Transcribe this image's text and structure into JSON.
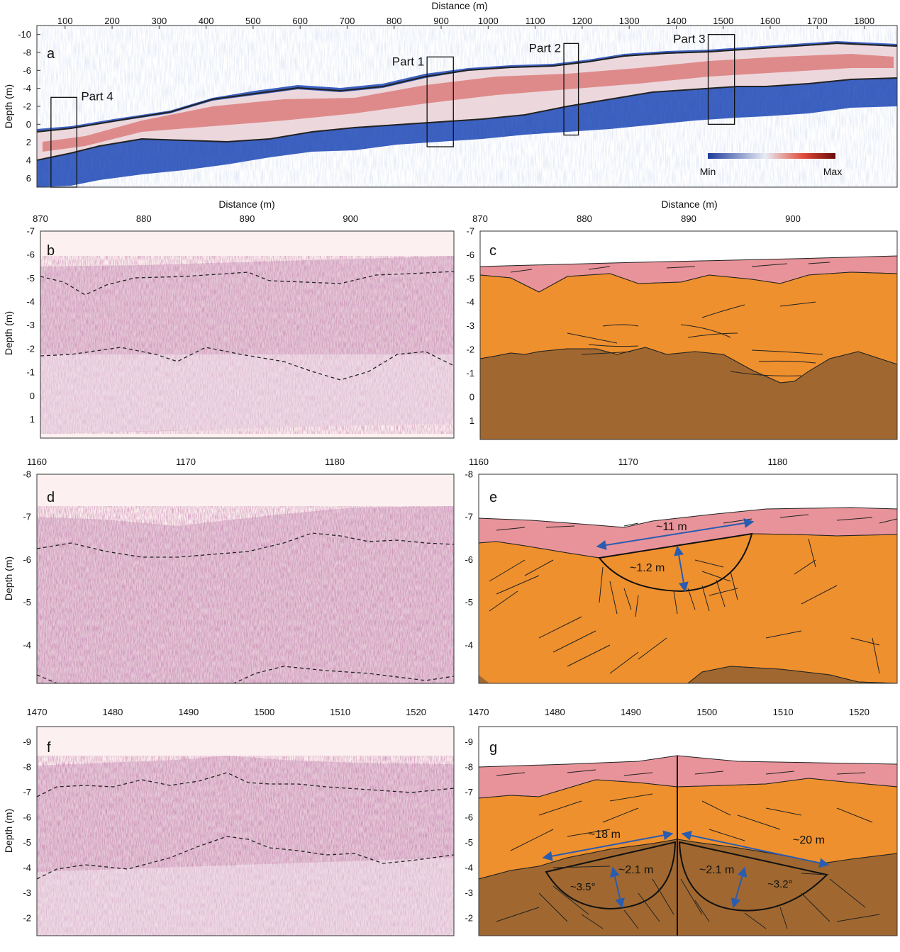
{
  "panel_a": {
    "letter": "a",
    "xlabel": "Distance (m)",
    "ylabel": "Depth (m)",
    "xticks": [
      "100",
      "200",
      "300",
      "400",
      "500",
      "600",
      "700",
      "800",
      "900",
      "1000",
      "1100",
      "1200",
      "1300",
      "1400",
      "1500",
      "1600",
      "1700",
      "1800"
    ],
    "yticks": [
      "-10",
      "-8",
      "-6",
      "-4",
      "-2",
      "0",
      "2",
      "4",
      "6"
    ],
    "boxes": [
      {
        "label": "Part 1",
        "x_range": [
          870,
          926
        ],
        "depth_range": [
          -7.5,
          2.5
        ]
      },
      {
        "label": "Part 2",
        "x_range": [
          1161,
          1192
        ],
        "depth_range": [
          -9,
          1.2
        ]
      },
      {
        "label": "Part 3",
        "x_range": [
          1468,
          1524
        ],
        "depth_range": [
          -10,
          0
        ]
      },
      {
        "label": "Part 4",
        "x_range": [
          70,
          125
        ],
        "depth_range": [
          -3,
          7
        ]
      }
    ],
    "colorbar": {
      "min_label": "Min",
      "max_label": "Max",
      "colors": [
        "#1e3a9a",
        "#e8ecf4",
        "#e04a3a",
        "#6b0a0a"
      ]
    }
  },
  "panel_b": {
    "letter": "b",
    "xlabel": "Distance (m)",
    "ylabel": "Depth (m)",
    "xticks": [
      "870",
      "880",
      "890",
      "900"
    ],
    "yticks": [
      "-7",
      "-6",
      "-5",
      "-4",
      "-3",
      "-2",
      "-1",
      "0",
      "1"
    ]
  },
  "panel_c": {
    "letter": "c",
    "xlabel": "Distance (m)",
    "xticks": [
      "870",
      "880",
      "890",
      "900"
    ],
    "yticks": [
      "-7",
      "-6",
      "-5",
      "-4",
      "-3",
      "-2",
      "-1",
      "0",
      "1"
    ]
  },
  "panel_d": {
    "letter": "d",
    "ylabel": "Depth (m)",
    "xticks": [
      "1160",
      "1170",
      "1180"
    ],
    "yticks": [
      "-8",
      "-7",
      "-6",
      "-5",
      "-4"
    ]
  },
  "panel_e": {
    "letter": "e",
    "xticks": [
      "1160",
      "1170",
      "1180"
    ],
    "yticks": [
      "-8",
      "-7",
      "-6",
      "-5",
      "-4"
    ],
    "annotations": [
      "~11 m",
      "~1.2 m"
    ]
  },
  "panel_f": {
    "letter": "f",
    "ylabel": "Depth (m)",
    "xticks": [
      "1470",
      "1480",
      "1490",
      "1500",
      "1510",
      "1520"
    ],
    "yticks": [
      "-9",
      "-8",
      "-7",
      "-6",
      "-5",
      "-4",
      "-3",
      "-2"
    ]
  },
  "panel_g": {
    "letter": "g",
    "xticks": [
      "1470",
      "1480",
      "1490",
      "1500",
      "1510",
      "1520"
    ],
    "yticks": [
      "-9",
      "-8",
      "-7",
      "-6",
      "-5",
      "-4",
      "-3",
      "-2"
    ],
    "annotations": [
      "~18 m",
      "~20 m",
      "~2.1 m",
      "~2.1 m",
      "~3.5°",
      "~3.2°"
    ]
  },
  "colors": {
    "upper_layer": "#e8939a",
    "middle_layer": "#ee902e",
    "lower_layer": "#a06830",
    "radar_ink": "#8a3a6a",
    "radar_bg": "#fdf0f0",
    "arrow": "#2a5cb0"
  }
}
